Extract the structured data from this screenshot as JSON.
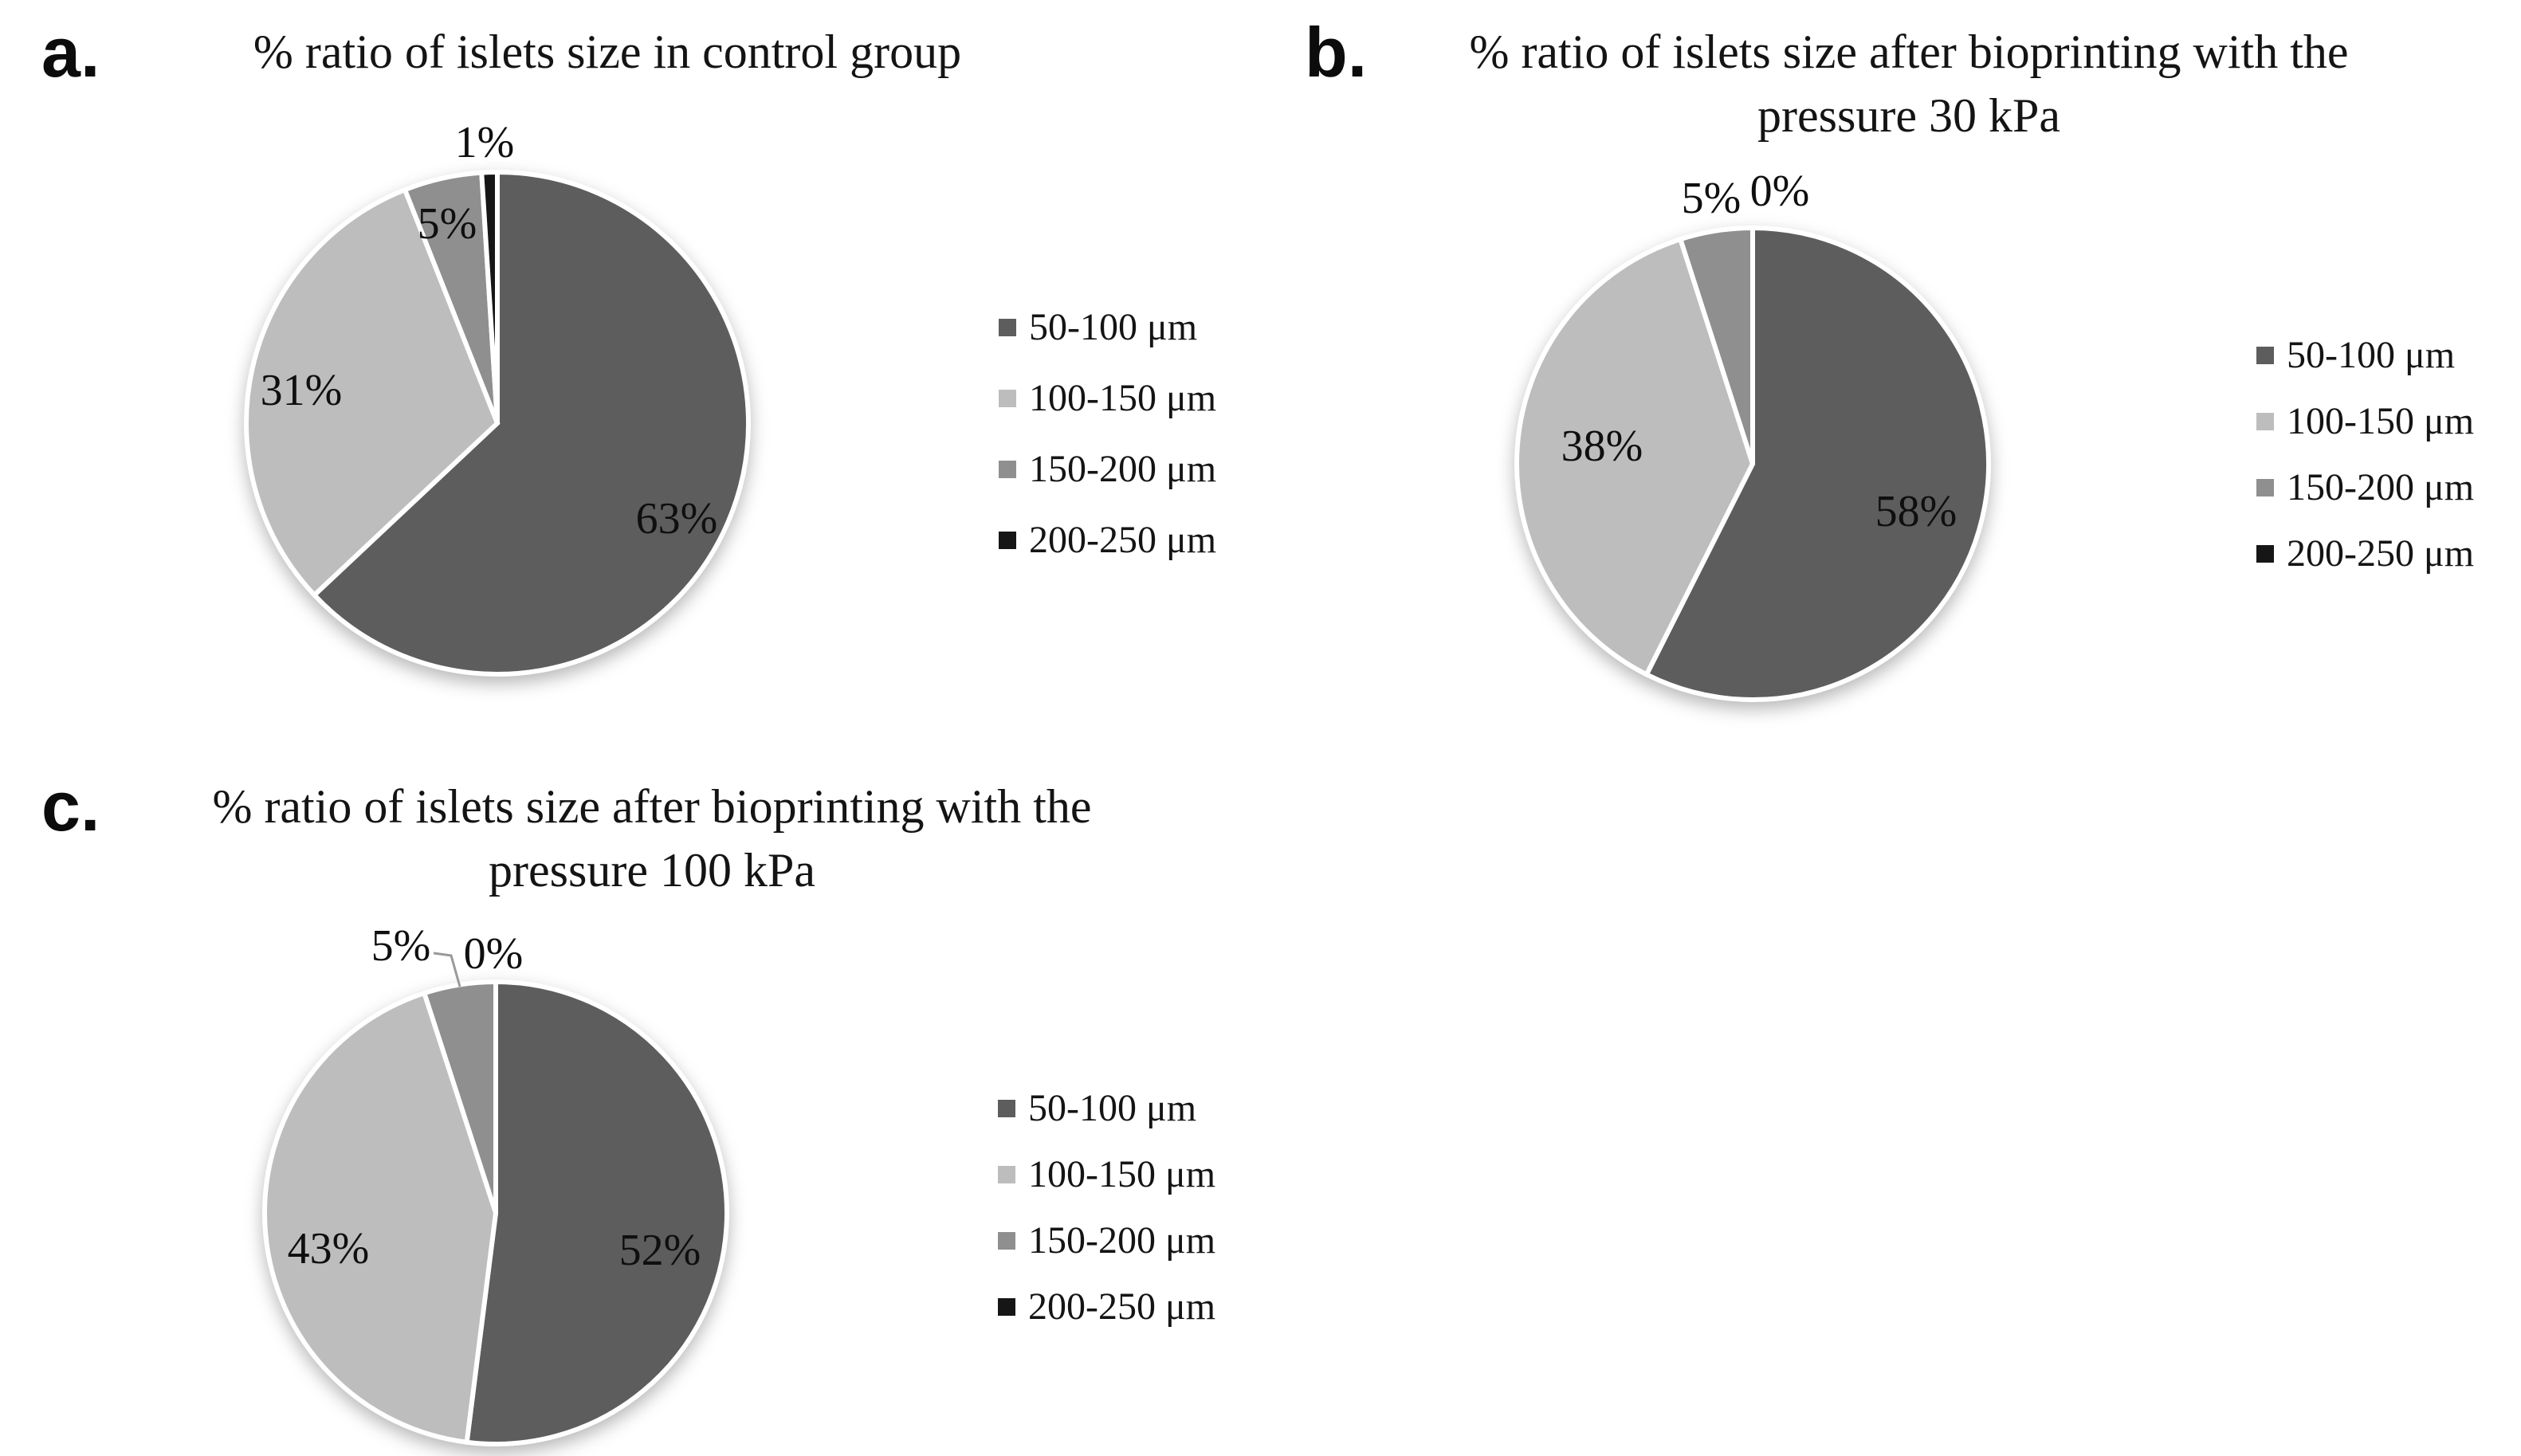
{
  "figure": {
    "background": "#ffffff",
    "text_color": "#141414",
    "slice_colors": [
      "#5d5d5d",
      "#bdbdbd",
      "#8f8f8f",
      "#161616"
    ],
    "legend_labels": [
      "50-100 μm",
      "100-150 μm",
      "150-200 μm",
      "200-250 μm"
    ]
  },
  "chart_data": [
    {
      "id": "a",
      "panel_letter": "a.",
      "type": "pie",
      "title_lines": [
        "% ratio of islets size in control group",
        ""
      ],
      "categories": [
        "50-100 μm",
        "100-150 μm",
        "150-200 μm",
        "200-250 μm"
      ],
      "values": [
        63,
        31,
        5,
        1
      ],
      "value_labels": [
        "63%",
        "31%",
        "5%",
        "1%"
      ],
      "legend_position": "right"
    },
    {
      "id": "b",
      "panel_letter": "b.",
      "type": "pie",
      "title_lines": [
        "% ratio of islets size after bioprinting with the",
        "pressure 30 kPa"
      ],
      "categories": [
        "50-100 μm",
        "100-150 μm",
        "150-200 μm",
        "200-250 μm"
      ],
      "values": [
        58,
        38,
        5,
        0
      ],
      "value_labels": [
        "58%",
        "38%",
        "5%",
        "0%"
      ],
      "legend_position": "right"
    },
    {
      "id": "c",
      "panel_letter": "c.",
      "type": "pie",
      "title_lines": [
        "% ratio of islets size after bioprinting with the",
        "pressure 100 kPa"
      ],
      "categories": [
        "50-100 μm",
        "100-150 μm",
        "150-200 μm",
        "200-250 μm"
      ],
      "values": [
        52,
        43,
        5,
        0
      ],
      "value_labels": [
        "52%",
        "43%",
        "5%",
        "0%"
      ],
      "legend_position": "right"
    }
  ]
}
